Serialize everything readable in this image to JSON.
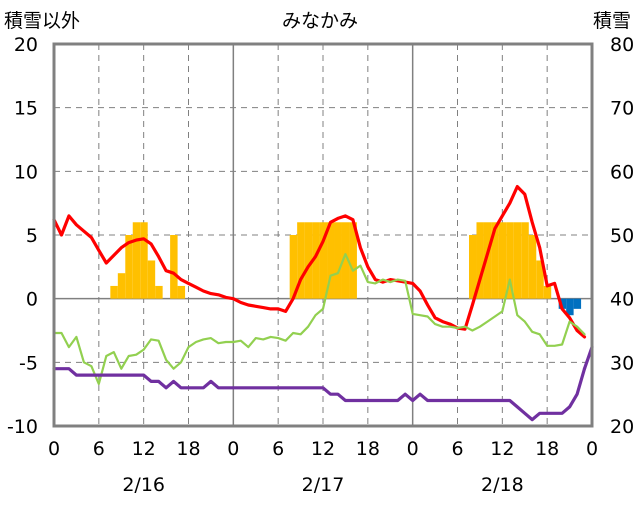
{
  "chart_data": {
    "type": "line",
    "title": "みなかみ",
    "ylabel_left": "積雪以外",
    "ylabel_right": "積雪",
    "ylim_left": [
      -10,
      20
    ],
    "ylim_right": [
      20,
      80
    ],
    "left_ticks": [
      "20",
      "15",
      "10",
      "5",
      "0",
      "-5",
      "-10"
    ],
    "right_ticks": [
      "80",
      "70",
      "60",
      "50",
      "40",
      "30",
      "20"
    ],
    "x_range_hours": [
      0,
      72
    ],
    "x_tick_labels": [
      "0",
      "6",
      "12",
      "18",
      "0",
      "6",
      "12",
      "18",
      "0",
      "6",
      "12",
      "18",
      "0"
    ],
    "date_labels": [
      "2/16",
      "2/17",
      "2/18"
    ],
    "grid": "dashed vertical at 6-hour steps, solid day separators, solid horizontal at 0",
    "colors": {
      "precip_bars": "#ffc000",
      "snow_depth_change": "#0070c0",
      "temperature": "#ff0000",
      "humidity_like": "#92d050",
      "dewpoint_like": "#7030a0",
      "frame": "#808080"
    },
    "series": [
      {
        "kind": "bar",
        "axis": "left",
        "color": "#ffc000",
        "values": [
          [
            8,
            1
          ],
          [
            9,
            2
          ],
          [
            10,
            5
          ],
          [
            11,
            6
          ],
          [
            12,
            6
          ],
          [
            13,
            3
          ],
          [
            14,
            1
          ],
          [
            16,
            5
          ],
          [
            17,
            1
          ],
          [
            32,
            5
          ],
          [
            33,
            6
          ],
          [
            34,
            6
          ],
          [
            35,
            6
          ],
          [
            36,
            6
          ],
          [
            37,
            6
          ],
          [
            38,
            6
          ],
          [
            39,
            6
          ],
          [
            40,
            6
          ],
          [
            56,
            5
          ],
          [
            57,
            6
          ],
          [
            58,
            6
          ],
          [
            59,
            6
          ],
          [
            60,
            6
          ],
          [
            61,
            6
          ],
          [
            62,
            6
          ],
          [
            63,
            6
          ],
          [
            64,
            5
          ],
          [
            65,
            3
          ],
          [
            66,
            1
          ]
        ]
      },
      {
        "kind": "bar",
        "axis": "left",
        "color": "#0070c0",
        "values": [
          [
            68,
            -0.8
          ],
          [
            69,
            -1.3
          ],
          [
            70,
            -0.8
          ]
        ]
      },
      {
        "kind": "line",
        "axis": "left",
        "color": "#ff0000",
        "x": [
          0,
          1,
          2,
          3,
          4,
          5,
          6,
          7,
          8,
          9,
          10,
          11,
          12,
          13,
          14,
          15,
          16,
          17,
          18,
          19,
          20,
          21,
          22,
          23,
          24,
          25,
          26,
          27,
          28,
          29,
          30,
          31,
          32,
          33,
          34,
          35,
          36,
          37,
          38,
          39,
          40,
          41,
          42,
          43,
          44,
          45,
          46,
          47,
          48,
          49,
          50,
          51,
          52,
          53,
          54,
          55,
          56,
          57,
          58,
          59,
          60,
          61,
          62,
          63,
          64,
          65,
          66,
          67,
          68,
          69,
          70,
          71
        ],
        "values": [
          6.2,
          5.0,
          6.5,
          5.8,
          5.3,
          4.8,
          3.8,
          2.8,
          3.4,
          4.0,
          4.4,
          4.6,
          4.7,
          4.3,
          3.3,
          2.2,
          2.0,
          1.5,
          1.2,
          0.9,
          0.6,
          0.4,
          0.3,
          0.1,
          0.0,
          -0.3,
          -0.5,
          -0.6,
          -0.7,
          -0.8,
          -0.8,
          -1.0,
          0.0,
          1.5,
          2.5,
          3.3,
          4.5,
          6.0,
          6.3,
          6.5,
          6.2,
          4.0,
          2.5,
          1.5,
          1.3,
          1.5,
          1.4,
          1.3,
          1.2,
          0.6,
          -0.5,
          -1.5,
          -1.8,
          -2.0,
          -2.3,
          -2.4,
          -0.5,
          1.5,
          3.5,
          5.5,
          6.5,
          7.5,
          8.8,
          8.2,
          6.0,
          4.0,
          1.0,
          1.2,
          -0.8,
          -1.5,
          -2.5,
          -3.0
        ]
      },
      {
        "kind": "line",
        "axis": "left",
        "color": "#92d050",
        "x": [
          0,
          1,
          2,
          3,
          4,
          5,
          6,
          7,
          8,
          9,
          10,
          11,
          12,
          13,
          14,
          15,
          16,
          17,
          18,
          19,
          20,
          21,
          22,
          23,
          24,
          25,
          26,
          27,
          28,
          29,
          30,
          31,
          32,
          33,
          34,
          35,
          36,
          37,
          38,
          39,
          40,
          41,
          42,
          43,
          44,
          45,
          46,
          47,
          48,
          49,
          50,
          51,
          52,
          53,
          54,
          55,
          56,
          57,
          58,
          59,
          60,
          61,
          62,
          63,
          64,
          65,
          66,
          67,
          68,
          69,
          70,
          71
        ],
        "values": [
          -2.7,
          -2.7,
          -3.8,
          -3.0,
          -5.0,
          -5.3,
          -6.7,
          -4.5,
          -4.2,
          -5.5,
          -4.5,
          -4.4,
          -4.0,
          -3.2,
          -3.3,
          -4.8,
          -5.5,
          -5.0,
          -3.8,
          -3.4,
          -3.2,
          -3.1,
          -3.5,
          -3.4,
          -3.4,
          -3.3,
          -3.8,
          -3.1,
          -3.2,
          -3.0,
          -3.1,
          -3.3,
          -2.7,
          -2.8,
          -2.2,
          -1.3,
          -0.8,
          1.8,
          2.0,
          3.5,
          2.2,
          2.6,
          1.3,
          1.2,
          1.5,
          1.3,
          1.5,
          1.4,
          -1.2,
          -1.3,
          -1.4,
          -2.0,
          -2.2,
          -2.2,
          -2.3,
          -2.2,
          -2.5,
          -2.2,
          -1.8,
          -1.4,
          -1.0,
          1.5,
          -1.3,
          -1.8,
          -2.6,
          -2.8,
          -3.7,
          -3.7,
          -3.6,
          -1.8,
          -2.2,
          -2.8
        ]
      },
      {
        "kind": "line",
        "axis": "left",
        "color": "#7030a0",
        "x": [
          0,
          1,
          2,
          3,
          4,
          5,
          6,
          7,
          8,
          9,
          10,
          11,
          12,
          13,
          14,
          15,
          16,
          17,
          18,
          19,
          20,
          21,
          22,
          23,
          24,
          25,
          26,
          27,
          28,
          29,
          30,
          31,
          32,
          33,
          34,
          35,
          36,
          37,
          38,
          39,
          40,
          41,
          42,
          43,
          44,
          45,
          46,
          47,
          48,
          49,
          50,
          51,
          52,
          53,
          54,
          55,
          56,
          57,
          58,
          59,
          60,
          61,
          62,
          63,
          64,
          65,
          66,
          67,
          68,
          69,
          70,
          71
        ],
        "values": [
          -5.5,
          -5.5,
          -5.5,
          -6.0,
          -6.0,
          -6.0,
          -6.0,
          -6.0,
          -6.0,
          -6.0,
          -6.0,
          -6.0,
          -6.0,
          -6.5,
          -6.5,
          -7.0,
          -6.5,
          -7.0,
          -7.0,
          -7.0,
          -7.0,
          -6.5,
          -7.0,
          -7.0,
          -7.0,
          -7.0,
          -7.0,
          -7.0,
          -7.0,
          -7.0,
          -7.0,
          -7.0,
          -7.0,
          -7.0,
          -7.0,
          -7.0,
          -7.0,
          -7.5,
          -7.5,
          -8.0,
          -8.0,
          -8.0,
          -8.0,
          -8.0,
          -8.0,
          -8.0,
          -8.0,
          -7.5,
          -8.0,
          -7.5,
          -8.0,
          -8.0,
          -8.0,
          -8.0,
          -8.0,
          -8.0,
          -8.0,
          -8.0,
          -8.0,
          -8.0,
          -8.0,
          -8.0,
          -8.5,
          -9.0,
          -9.5,
          -9.0,
          -9.0,
          -9.0,
          -9.0,
          -8.5,
          -7.5,
          -5.5
        ]
      },
      {
        "kind": "line",
        "axis": "left",
        "color": "#7030a0",
        "x": [
          71,
          72
        ],
        "values": [
          -5.5,
          -3.8
        ]
      }
    ]
  }
}
